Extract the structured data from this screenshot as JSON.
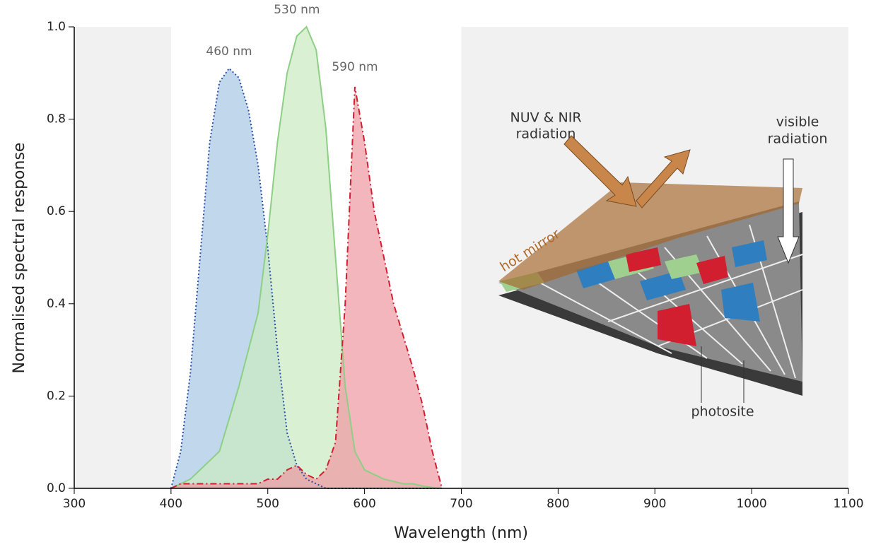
{
  "chart_data": {
    "type": "area",
    "xlabel": "Wavelength (nm)",
    "ylabel": "Normalised spectral response",
    "x": [
      400,
      410,
      420,
      430,
      440,
      450,
      460,
      470,
      480,
      490,
      500,
      510,
      520,
      530,
      540,
      550,
      560,
      570,
      580,
      590,
      600,
      610,
      620,
      630,
      640,
      650,
      660,
      670,
      680
    ],
    "series": [
      {
        "color": "#2a4fa6",
        "fill": "#a9c9e4",
        "dash": "dotted",
        "values": [
          0,
          0.08,
          0.25,
          0.5,
          0.75,
          0.88,
          0.91,
          0.89,
          0.82,
          0.7,
          0.52,
          0.3,
          0.12,
          0.05,
          0.02,
          0.01,
          0,
          0,
          0,
          0,
          0,
          0,
          0,
          0,
          0,
          0,
          0,
          0,
          0
        ]
      },
      {
        "color": "#8dcf84",
        "fill": "#cbeac2",
        "dash": "solid",
        "values": [
          0,
          0.01,
          0.02,
          0.04,
          0.06,
          0.08,
          0.15,
          0.22,
          0.3,
          0.38,
          0.55,
          0.75,
          0.9,
          0.98,
          1.0,
          0.95,
          0.78,
          0.5,
          0.22,
          0.08,
          0.04,
          0.03,
          0.02,
          0.015,
          0.01,
          0.01,
          0.005,
          0.002,
          0
        ]
      },
      {
        "color": "#d11f2f",
        "fill": "#ee9aa3",
        "dash": "dashdot",
        "values": [
          0,
          0.01,
          0.01,
          0.01,
          0.01,
          0.01,
          0.01,
          0.01,
          0.01,
          0.01,
          0.02,
          0.02,
          0.04,
          0.05,
          0.03,
          0.02,
          0.04,
          0.1,
          0.4,
          0.87,
          0.75,
          0.6,
          0.5,
          0.4,
          0.33,
          0.26,
          0.18,
          0.08,
          0
        ]
      }
    ],
    "xlim": [
      300,
      1100
    ],
    "xticks": [
      300,
      400,
      500,
      600,
      700,
      800,
      900,
      1000,
      1100
    ],
    "ylim": [
      0,
      1
    ],
    "yticks": [
      {
        "value": 0,
        "label": "0.0"
      },
      0.2,
      0.4,
      0.6,
      0.8,
      {
        "value": 1,
        "label": "1.0"
      }
    ],
    "shaded_xranges": [
      [
        300,
        400
      ],
      [
        700,
        1100
      ]
    ],
    "annotations": {
      "peaks": [
        {
          "text": "460 nm",
          "x": 460,
          "y": 0.91
        },
        {
          "text": "530 nm",
          "x": 530,
          "y": 1.0
        },
        {
          "text": "590 nm",
          "x": 590,
          "y": 0.87
        }
      ],
      "nuv_nir": [
        "NUV & NIR",
        "radiation"
      ],
      "visible": [
        "visible",
        "radiation"
      ],
      "hot_mirror": "hot mirror",
      "photosite": "photosite"
    }
  }
}
